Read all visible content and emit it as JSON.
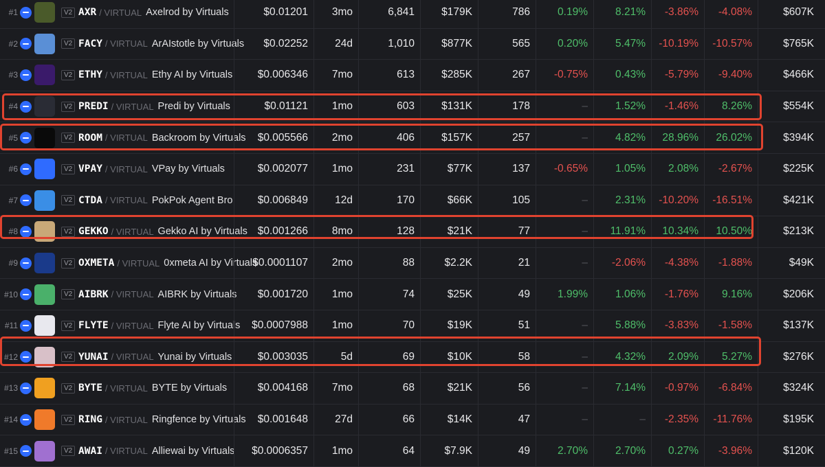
{
  "rows": [
    {
      "rank": "#1",
      "sym": "AXR",
      "pair": "/ VIRTUAL",
      "name": "Axelrod by Virtuals",
      "price": "$0.01201",
      "age": "3mo",
      "txns": "6,841",
      "volume": "$179K",
      "makers": "786",
      "c5m": "0.19%",
      "c1h": "8.21%",
      "c6h": "-3.86%",
      "c24h": "-4.08%",
      "liq": "$607K",
      "logo": "#4a5a2a"
    },
    {
      "rank": "#2",
      "sym": "FACY",
      "pair": "/ VIRTUAL",
      "name": "ArAIstotle by Virtuals",
      "price": "$0.02252",
      "age": "24d",
      "txns": "1,010",
      "volume": "$877K",
      "makers": "565",
      "c5m": "0.20%",
      "c1h": "5.47%",
      "c6h": "-10.19%",
      "c24h": "-10.57%",
      "liq": "$765K",
      "logo": "#5a8fd6"
    },
    {
      "rank": "#3",
      "sym": "ETHY",
      "pair": "/ VIRTUAL",
      "name": "Ethy AI by Virtuals",
      "price": "$0.006346",
      "age": "7mo",
      "txns": "613",
      "volume": "$285K",
      "makers": "267",
      "c5m": "-0.75%",
      "c1h": "0.43%",
      "c6h": "-5.79%",
      "c24h": "-9.40%",
      "liq": "$466K",
      "logo": "#3a1a6a"
    },
    {
      "rank": "#4",
      "sym": "PREDI",
      "pair": "/ VIRTUAL",
      "name": "Predi by Virtuals",
      "price": "$0.01121",
      "age": "1mo",
      "txns": "603",
      "volume": "$131K",
      "makers": "178",
      "c5m": "–",
      "c1h": "1.52%",
      "c6h": "-1.46%",
      "c24h": "8.26%",
      "liq": "$554K",
      "logo": "#2a2c35"
    },
    {
      "rank": "#5",
      "sym": "ROOM",
      "pair": "/ VIRTUAL",
      "name": "Backroom by Virtuals",
      "price": "$0.005566",
      "age": "2mo",
      "txns": "406",
      "volume": "$157K",
      "makers": "257",
      "c5m": "–",
      "c1h": "4.82%",
      "c6h": "28.96%",
      "c24h": "26.02%",
      "liq": "$394K",
      "logo": "#0a0a0a"
    },
    {
      "rank": "#6",
      "sym": "VPAY",
      "pair": "/ VIRTUAL",
      "name": "VPay by Virtuals",
      "price": "$0.002077",
      "age": "1mo",
      "txns": "231",
      "volume": "$77K",
      "makers": "137",
      "c5m": "-0.65%",
      "c1h": "1.05%",
      "c6h": "2.08%",
      "c24h": "-2.67%",
      "liq": "$225K",
      "logo": "#2f6bff"
    },
    {
      "rank": "#7",
      "sym": "CTDA",
      "pair": "/ VIRTUAL",
      "name": "PokPok Agent Bro",
      "price": "$0.006849",
      "age": "12d",
      "txns": "170",
      "volume": "$66K",
      "makers": "105",
      "c5m": "–",
      "c1h": "2.31%",
      "c6h": "-10.20%",
      "c24h": "-16.51%",
      "liq": "$421K",
      "logo": "#3a8ee6"
    },
    {
      "rank": "#8",
      "sym": "GEKKO",
      "pair": "/ VIRTUAL",
      "name": "Gekko AI by Virtuals",
      "price": "$0.001266",
      "age": "8mo",
      "txns": "128",
      "volume": "$21K",
      "makers": "77",
      "c5m": "–",
      "c1h": "11.91%",
      "c6h": "10.34%",
      "c24h": "10.50%",
      "liq": "$213K",
      "logo": "#c8a878"
    },
    {
      "rank": "#9",
      "sym": "OXMETA",
      "pair": "/ VIRTUAL",
      "name": "0xmeta AI by Virtuals",
      "price": "$0.0001107",
      "age": "2mo",
      "txns": "88",
      "volume": "$2.2K",
      "makers": "21",
      "c5m": "–",
      "c1h": "-2.06%",
      "c6h": "-4.38%",
      "c24h": "-1.88%",
      "liq": "$49K",
      "logo": "#1a3a8a"
    },
    {
      "rank": "#10",
      "sym": "AIBRK",
      "pair": "/ VIRTUAL",
      "name": "AIBRK by Virtuals",
      "price": "$0.001720",
      "age": "1mo",
      "txns": "74",
      "volume": "$25K",
      "makers": "49",
      "c5m": "1.99%",
      "c1h": "1.06%",
      "c6h": "-1.76%",
      "c24h": "9.16%",
      "liq": "$206K",
      "logo": "#4ab06a"
    },
    {
      "rank": "#11",
      "sym": "FLYTE",
      "pair": "/ VIRTUAL",
      "name": "Flyte AI by Virtuals",
      "price": "$0.0007988",
      "age": "1mo",
      "txns": "70",
      "volume": "$19K",
      "makers": "51",
      "c5m": "–",
      "c1h": "5.88%",
      "c6h": "-3.83%",
      "c24h": "-1.58%",
      "liq": "$137K",
      "logo": "#e8e8ee"
    },
    {
      "rank": "#12",
      "sym": "YUNAI",
      "pair": "/ VIRTUAL",
      "name": "Yunai by Virtuals",
      "price": "$0.003035",
      "age": "5d",
      "txns": "69",
      "volume": "$10K",
      "makers": "58",
      "c5m": "–",
      "c1h": "4.32%",
      "c6h": "2.09%",
      "c24h": "5.27%",
      "liq": "$276K",
      "logo": "#d8c0c8"
    },
    {
      "rank": "#13",
      "sym": "BYTE",
      "pair": "/ VIRTUAL",
      "name": "BYTE by Virtuals",
      "price": "$0.004168",
      "age": "7mo",
      "txns": "68",
      "volume": "$21K",
      "makers": "56",
      "c5m": "–",
      "c1h": "7.14%",
      "c6h": "-0.97%",
      "c24h": "-6.84%",
      "liq": "$324K",
      "logo": "#f0a020"
    },
    {
      "rank": "#14",
      "sym": "RING",
      "pair": "/ VIRTUAL",
      "name": "Ringfence by Virtuals",
      "price": "$0.001648",
      "age": "27d",
      "txns": "66",
      "volume": "$14K",
      "makers": "47",
      "c5m": "–",
      "c1h": "–",
      "c6h": "-2.35%",
      "c24h": "-11.76%",
      "liq": "$195K",
      "logo": "#f07a2a"
    },
    {
      "rank": "#15",
      "sym": "AWAI",
      "pair": "/ VIRTUAL",
      "name": "Alliewai by Virtuals",
      "price": "$0.0006357",
      "age": "1mo",
      "txns": "64",
      "volume": "$7.9K",
      "makers": "49",
      "c5m": "2.70%",
      "c1h": "2.70%",
      "c6h": "0.27%",
      "c24h": "-3.96%",
      "liq": "$120K",
      "logo": "#a070d0"
    }
  ]
}
